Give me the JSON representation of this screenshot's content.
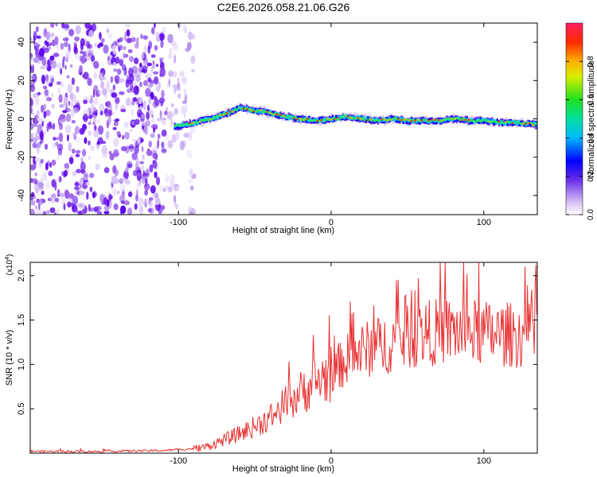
{
  "title": "C2E6.2026.058.21.06.G26",
  "chart_data": [
    {
      "type": "heatmap",
      "name": "spectrogram",
      "xlabel": "Height of straight line (km)",
      "ylabel": "Frequency (Hz)",
      "xlim": [
        -197,
        135
      ],
      "ylim": [
        -50,
        50
      ],
      "xticks": [
        -100,
        0,
        100
      ],
      "yticks": [
        -40,
        -20,
        0,
        20,
        40
      ],
      "colorbar": {
        "label": "Normalized spectral amplitude",
        "range": [
          0,
          1
        ],
        "ticks": [
          0.0,
          0.2,
          0.4,
          0.6,
          0.8
        ]
      },
      "noise_region_km": [
        -197,
        -90
      ],
      "signal_start_km": -103,
      "ridge": {
        "x": [
          -103,
          -95,
          -85,
          -75,
          -65,
          -60,
          -55,
          -50,
          -45,
          -40,
          -35,
          -30,
          -20,
          -10,
          0,
          10,
          20,
          30,
          40,
          50,
          60,
          70,
          80,
          90,
          100,
          110,
          120,
          135
        ],
        "freq": [
          -4,
          -3,
          -1,
          1,
          4,
          6,
          5,
          4,
          4,
          3,
          2,
          1,
          0,
          -1,
          0,
          1,
          0,
          -1,
          0,
          -1,
          -1,
          -1,
          0,
          -1,
          -1,
          -2,
          -2,
          -3
        ]
      }
    },
    {
      "type": "line",
      "name": "snr",
      "xlabel": "Height of straight line (km)",
      "ylabel": "SNR (10 * v/v)",
      "multiplier": "(x10",
      "multiplier_exp": "4",
      "multiplier_close": ")",
      "xlim": [
        -197,
        135
      ],
      "ylim": [
        0,
        2.15
      ],
      "xticks": [
        -100,
        0,
        100
      ],
      "yticks": [
        0.5,
        1.0,
        1.5,
        2.0
      ],
      "ytick_labels": [
        "0.5",
        "1.0",
        "1.5",
        "2.0"
      ],
      "series": [
        {
          "name": "SNR",
          "color": "#e83030",
          "trend": {
            "x": [
              -197,
              -150,
              -110,
              -90,
              -80,
              -70,
              -60,
              -50,
              -40,
              -30,
              -20,
              -10,
              0,
              10,
              20,
              40,
              60,
              80,
              100,
              120,
              135
            ],
            "y": [
              0.02,
              0.02,
              0.03,
              0.05,
              0.08,
              0.15,
              0.22,
              0.3,
              0.4,
              0.55,
              0.68,
              0.8,
              0.9,
              1.05,
              1.15,
              1.25,
              1.35,
              1.38,
              1.35,
              1.33,
              1.32
            ]
          },
          "peak_approx": 2.1
        }
      ]
    }
  ]
}
